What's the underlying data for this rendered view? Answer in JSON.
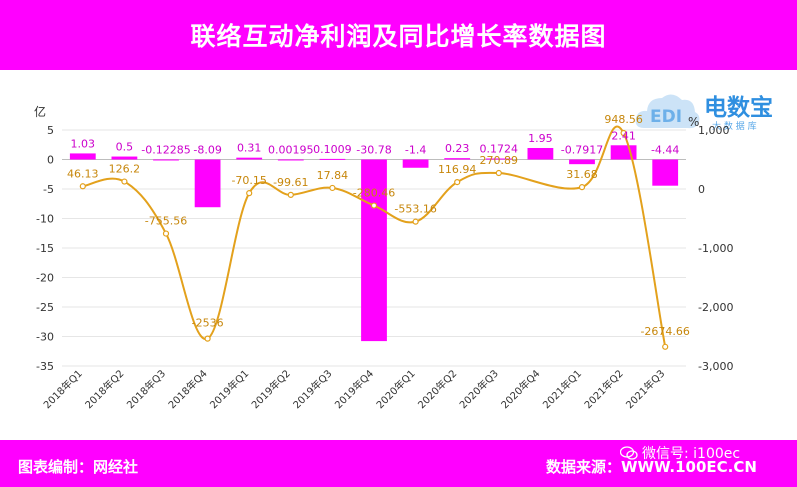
{
  "header": {
    "title": "联络互动净利润及同比增长率数据图"
  },
  "footer": {
    "left": "图表编制：网经社",
    "right": "数据来源：WWW.100EC.CN"
  },
  "watermark": {
    "wechat": "微信号: i100ec"
  },
  "logo": {
    "main": "电数宝",
    "sub": "大 数 据 库"
  },
  "colors": {
    "bar": "#ff00ff",
    "line": "#e3a11c",
    "header": "#ff00ff",
    "logo": "#2f8fe0"
  },
  "chart_data": {
    "type": "bar",
    "categories": [
      "2018年Q1",
      "2018年Q2",
      "2018年Q3",
      "2018年Q4",
      "2019年Q1",
      "2019年Q2",
      "2019年Q3",
      "2019年Q4",
      "2020年Q1",
      "2020年Q2",
      "2020年Q3",
      "2020年Q4",
      "2021年Q1",
      "2021年Q2",
      "2021年Q3"
    ],
    "series": [
      {
        "type": "bar",
        "axis": "left",
        "values": [
          1.03,
          0.5,
          -0.12285,
          -8.09,
          0.31,
          0.00195,
          0.1009,
          -30.78,
          -1.4,
          0.23,
          0.1724,
          1.95,
          -0.7917,
          2.41,
          -4.44
        ],
        "labels": [
          "1.03",
          "0.5",
          "-0.12285",
          "-8.09",
          "0.31",
          "0.00195",
          "0.1009",
          "-30.78",
          "-1.4",
          "0.23",
          "0.1724",
          "1.95",
          "-0.7917",
          "2.41",
          "-4.44"
        ]
      },
      {
        "type": "line",
        "axis": "right",
        "values": [
          46.13,
          126.2,
          -755.56,
          -2536,
          -70.15,
          -99.61,
          17.84,
          -280.46,
          -553.16,
          116.94,
          270.89,
          null,
          31.68,
          948.56,
          -2674.66
        ],
        "labels": [
          "46.13",
          "126.2",
          "-755.56",
          "-2536",
          "-70.15",
          "-99.61",
          "17.84",
          "-280.46",
          "-553.16",
          "116.94",
          "270.89",
          "",
          "31.68",
          "948.56",
          "-2674.66"
        ]
      }
    ],
    "yleft": {
      "unit": "亿",
      "min": -35,
      "max": 5,
      "ticks": [
        "5",
        "0",
        "-5",
        "-10",
        "-15",
        "-20",
        "-25",
        "-30",
        "-35"
      ]
    },
    "yright": {
      "unit": "%",
      "min": -3000,
      "max": 1000,
      "ticks": [
        "1,000",
        "0",
        "-1,000",
        "-2,000",
        "-3,000"
      ]
    },
    "grid": true,
    "legend": "none"
  }
}
